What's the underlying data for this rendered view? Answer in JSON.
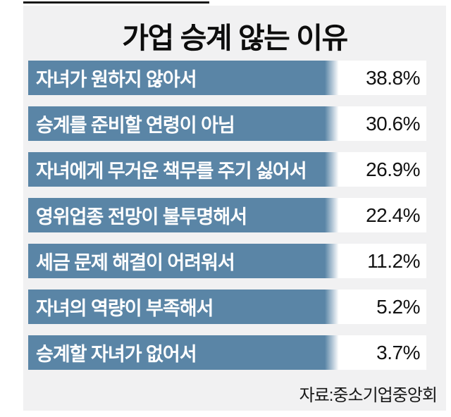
{
  "title": "가업 승계 않는 이유",
  "source": "자료:중소기업중앙회",
  "colors": {
    "bar": "#5A85A6",
    "panel_background": "#F1F1F2",
    "value_cell_background": "#FFFFFF",
    "label_text": "#FFFFFF",
    "value_text": "#121212",
    "top_rule": "#161616"
  },
  "chart_data": {
    "type": "bar",
    "orientation": "horizontal",
    "title": "가업 승계 않는 이유",
    "categories": [
      "자녀가 원하지 않아서",
      "승계를 준비할 연령이 아님",
      "자녀에게 무거운 책무를 주기 싫어서",
      "영위업종 전망이 불투명해서",
      "세금 문제 해결이 어려워서",
      "자녀의 역량이 부족해서",
      "승계할 자녀가 없어서"
    ],
    "values": [
      38.8,
      30.6,
      26.9,
      22.4,
      11.2,
      5.2,
      3.7
    ],
    "unit": "%",
    "value_labels": [
      "38.8%",
      "30.6%",
      "26.9%",
      "22.4%",
      "11.2%",
      "5.2%",
      "3.7%"
    ],
    "note": "equal-length label bars; values shown as text in white cells",
    "source": "자료:중소기업중앙회"
  },
  "rows": [
    {
      "label": "자녀가 원하지 않아서",
      "value": "38.8%"
    },
    {
      "label": "승계를 준비할 연령이 아님",
      "value": "30.6%"
    },
    {
      "label": "자녀에게 무거운 책무를 주기 싫어서",
      "value": "26.9%"
    },
    {
      "label": "영위업종 전망이 불투명해서",
      "value": "22.4%"
    },
    {
      "label": "세금 문제 해결이 어려워서",
      "value": "11.2%"
    },
    {
      "label": "자녀의 역량이 부족해서",
      "value": "5.2%"
    },
    {
      "label": "승계할 자녀가 없어서",
      "value": "3.7%"
    }
  ]
}
